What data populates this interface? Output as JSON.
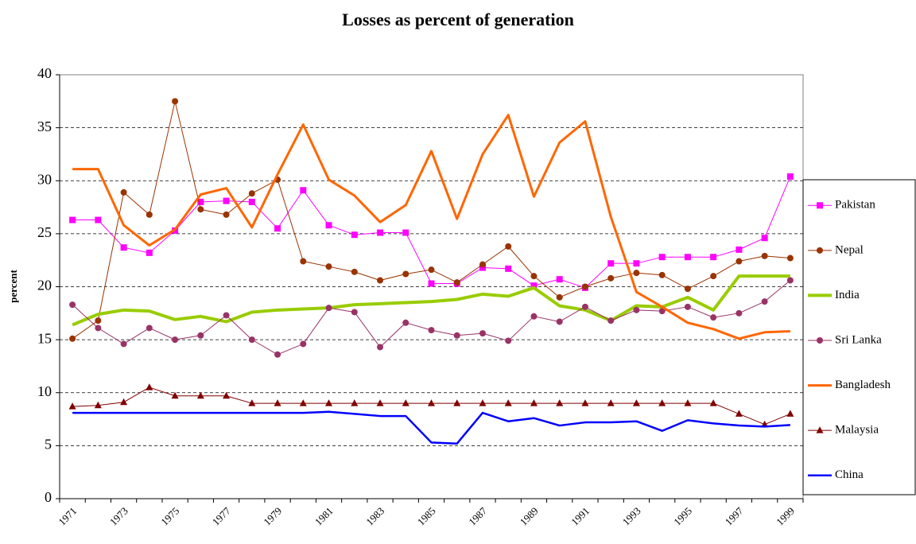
{
  "chart_data": {
    "type": "line",
    "title": "Losses as percent of generation",
    "y_label": "percent",
    "categories": [
      1971,
      null,
      1973,
      null,
      1975,
      null,
      1977,
      null,
      1979,
      null,
      1981,
      null,
      1983,
      null,
      1985,
      null,
      1987,
      null,
      1989,
      null,
      1991,
      null,
      1993,
      null,
      1995,
      null,
      1997,
      null,
      1999
    ],
    "ylim": [
      0,
      40
    ],
    "yticks": [
      0,
      5,
      10,
      15,
      20,
      25,
      30,
      35,
      40
    ],
    "grid": true,
    "legend": "right",
    "series": [
      {
        "name": "Pakistan",
        "color": "#ff00ff",
        "marker": "square",
        "width": 1,
        "values": [
          26.3,
          26.3,
          23.7,
          23.2,
          25.3,
          28.0,
          28.1,
          28.0,
          25.5,
          29.1,
          25.8,
          24.9,
          25.1,
          25.1,
          20.3,
          20.3,
          21.8,
          21.7,
          20.1,
          20.7,
          19.9,
          22.2,
          22.2,
          22.8,
          22.8,
          22.8,
          23.5,
          24.6,
          30.4
        ]
      },
      {
        "name": "Nepal",
        "color": "#993300",
        "marker": "circle",
        "width": 1,
        "values": [
          15.1,
          16.8,
          28.9,
          26.8,
          37.5,
          27.3,
          26.8,
          28.8,
          30.1,
          22.4,
          21.9,
          21.4,
          20.6,
          21.2,
          21.6,
          20.4,
          22.1,
          23.8,
          21.0,
          19.0,
          20.0,
          20.8,
          21.3,
          21.1,
          19.8,
          21.0,
          22.4,
          22.9,
          22.7
        ]
      },
      {
        "name": "India",
        "color": "#99cc00",
        "marker": "none",
        "width": 4,
        "values": [
          16.4,
          17.4,
          17.8,
          17.7,
          16.9,
          17.2,
          16.7,
          17.6,
          17.8,
          17.9,
          18.0,
          18.3,
          18.4,
          18.5,
          18.6,
          18.8,
          19.3,
          19.1,
          19.9,
          18.2,
          17.8,
          16.8,
          18.2,
          18.1,
          19.0,
          17.8,
          21.0,
          21.0,
          21.0
        ]
      },
      {
        "name": "Sri Lanka",
        "color": "#993366",
        "marker": "circle",
        "width": 1,
        "values": [
          18.3,
          16.1,
          14.6,
          16.1,
          15.0,
          15.4,
          17.3,
          15.0,
          13.6,
          14.6,
          18.0,
          17.6,
          14.3,
          16.6,
          15.9,
          15.4,
          15.6,
          14.9,
          17.2,
          16.7,
          18.1,
          16.8,
          17.8,
          17.7,
          18.1,
          17.1,
          17.5,
          18.6,
          20.6
        ]
      },
      {
        "name": "Bangladesh",
        "color": "#ff6600",
        "marker": "none",
        "width": 3,
        "values": [
          31.1,
          31.1,
          25.8,
          23.9,
          25.4,
          28.7,
          29.3,
          25.6,
          30.6,
          35.3,
          30.1,
          28.6,
          26.1,
          27.7,
          32.8,
          26.4,
          32.5,
          36.2,
          28.5,
          33.6,
          35.6,
          26.6,
          19.5,
          18.1,
          16.6,
          16.0,
          15.1,
          15.7,
          15.8
        ]
      },
      {
        "name": "Malaysia",
        "color": "#800000",
        "marker": "triangle",
        "width": 1,
        "values": [
          8.7,
          8.8,
          9.1,
          10.5,
          9.7,
          9.7,
          9.7,
          9.0,
          9.0,
          9.0,
          9.0,
          9.0,
          9.0,
          9.0,
          9.0,
          9.0,
          9.0,
          9.0,
          9.0,
          9.0,
          9.0,
          9.0,
          9.0,
          9.0,
          9.0,
          9.0,
          8.0,
          7.0,
          8.0
        ]
      },
      {
        "name": "China",
        "color": "#0000ff",
        "marker": "none",
        "width": 2.5,
        "values": [
          8.1,
          8.1,
          8.1,
          8.1,
          8.1,
          8.1,
          8.1,
          8.1,
          8.1,
          8.1,
          8.2,
          8.0,
          7.8,
          7.8,
          5.3,
          5.2,
          8.1,
          7.3,
          7.6,
          6.9,
          7.2,
          7.2,
          7.3,
          6.4,
          7.4,
          7.1,
          6.9,
          6.8,
          6.95
        ]
      }
    ]
  }
}
